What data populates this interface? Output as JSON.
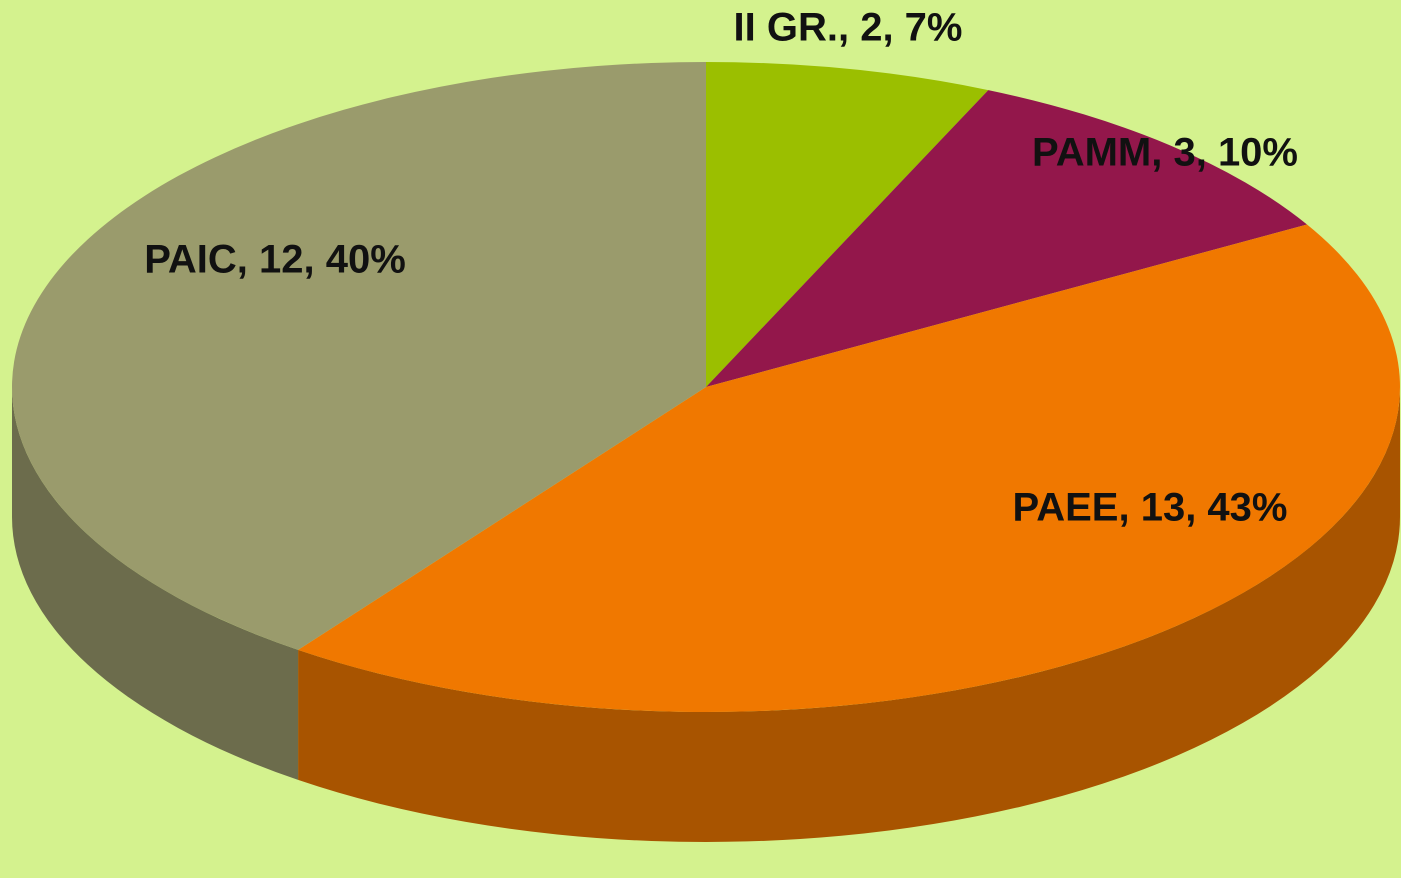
{
  "chart_data": {
    "type": "pie",
    "values": [
      2,
      3,
      13,
      12
    ],
    "value_labels": [
      "II GR., 2, 7%",
      "PAMM, 3, 10%",
      "PAEE, 13, 43%",
      "PAIC, 12, 40%"
    ],
    "colors": [
      "#9bbf00",
      "#93174b",
      "#f07800",
      "#9a9b6c"
    ]
  }
}
